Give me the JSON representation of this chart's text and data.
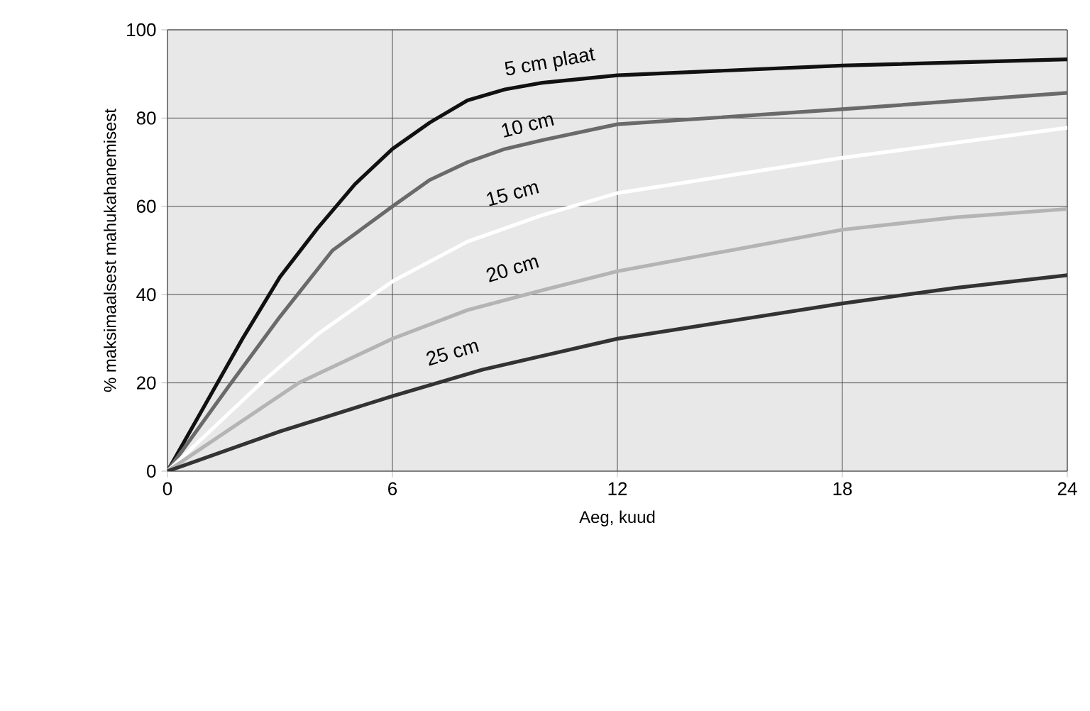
{
  "chart_data": {
    "type": "line",
    "xlabel": "Aeg, kuud",
    "ylabel": "% maksimaalsest mahukahanemisest",
    "xlim": [
      0,
      24
    ],
    "ylim": [
      0,
      100
    ],
    "xticks": [
      0,
      6,
      12,
      18,
      24
    ],
    "yticks": [
      0,
      20,
      40,
      60,
      80,
      100
    ],
    "grid": true,
    "marker": "none",
    "line_style": "solid",
    "series": [
      {
        "name": "5 cm plaat",
        "color": "#111111",
        "x": [
          0,
          1,
          2,
          3,
          4,
          5,
          6,
          7,
          8,
          9,
          10,
          12,
          18,
          24
        ],
        "values": [
          0,
          15,
          30,
          44,
          55,
          65,
          73,
          79,
          84,
          86.5,
          88,
          89.7,
          91.9,
          93.3
        ]
      },
      {
        "name": "10 cm",
        "color": "#6a6a6a",
        "x": [
          0,
          1.7,
          3,
          4.4,
          6,
          7,
          8,
          9,
          10,
          12,
          18,
          24
        ],
        "values": [
          0,
          20,
          35,
          50,
          60,
          66,
          70,
          73,
          75,
          78.6,
          82,
          85.7
        ]
      },
      {
        "name": "15 cm",
        "color": "#ffffff",
        "x": [
          0,
          2.5,
          4,
          6,
          8,
          10,
          12,
          18,
          24
        ],
        "values": [
          0,
          20,
          31,
          43,
          52,
          58,
          63,
          71,
          77.8
        ]
      },
      {
        "name": "20 cm",
        "color": "#b4b4b4",
        "x": [
          0,
          3.5,
          6,
          8,
          10,
          12,
          15,
          18,
          21,
          24
        ],
        "values": [
          0,
          20,
          30,
          36.5,
          41,
          45.3,
          50,
          54.7,
          57.5,
          59.4
        ]
      },
      {
        "name": "25 cm",
        "color": "#333333",
        "x": [
          0,
          3,
          6,
          8.4,
          12,
          15,
          18,
          21,
          24
        ],
        "values": [
          0,
          9,
          17,
          23,
          30,
          34,
          38,
          41.5,
          44.4
        ]
      }
    ]
  }
}
